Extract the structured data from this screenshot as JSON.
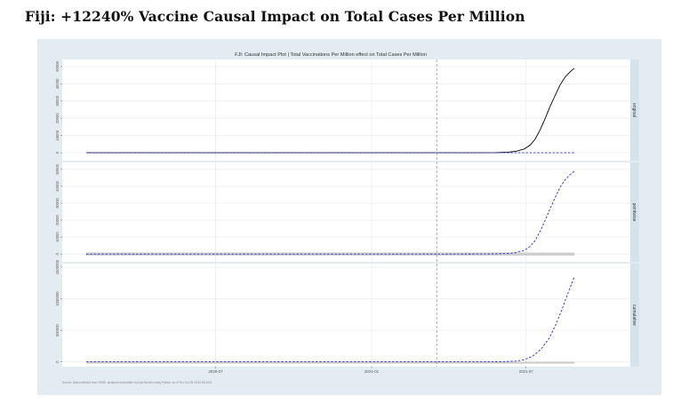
{
  "page_title": "Fiji: +12240% Vaccine Causal Impact on Total Cases Per Million",
  "colors": {
    "figure_background": "#e3ecf1",
    "panel_background": "#ffffff",
    "strip_background": "#d7e3eb",
    "observed_line": "#000000",
    "predicted_line": "#2f2fbf",
    "intervention_line": "#9a9a9a",
    "gridline": "#e4e8ec",
    "band": "#bdbdbd"
  },
  "chart_data": {
    "type": "line",
    "title": "FJI: Causal Impact Plot | Total Vaccinations Per Million effect on Total Cases Per Million",
    "source_note": "Source: Data collected from OWID, analyzed and plotted by Kyle Burden using Python, as of Thu Oct 05 19:42:08 2021",
    "x_domain": [
      0,
      620
    ],
    "intervention_x": 420,
    "x_ticks": [
      {
        "x": 155,
        "label": "2020-07"
      },
      {
        "x": 342,
        "label": "2021-01"
      },
      {
        "x": 527,
        "label": "2021-07"
      }
    ],
    "panels": [
      {
        "name": "original",
        "ylim": [
          -2000,
          52000
        ],
        "y_ticks": [
          0,
          10000,
          20000,
          30000,
          40000,
          50000
        ],
        "series": [
          {
            "name": "observed",
            "style": "solid",
            "points": [
              [
                0,
                0
              ],
              [
                420,
                0
              ],
              [
                470,
                30
              ],
              [
                490,
                100
              ],
              [
                505,
                350
              ],
              [
                515,
                900
              ],
              [
                525,
                2200
              ],
              [
                532,
                4500
              ],
              [
                538,
                8000
              ],
              [
                544,
                13500
              ],
              [
                550,
                20000
              ],
              [
                556,
                27000
              ],
              [
                562,
                33500
              ],
              [
                568,
                39500
              ],
              [
                574,
                44000
              ],
              [
                580,
                47000
              ],
              [
                585,
                49000
              ]
            ]
          },
          {
            "name": "predicted",
            "style": "dashed",
            "points": [
              [
                0,
                0
              ],
              [
                585,
                0
              ]
            ]
          }
        ]
      },
      {
        "name": "pointwise",
        "ylim": [
          -2000,
          52000
        ],
        "y_ticks": [
          0,
          10000,
          20000,
          30000,
          40000,
          50000
        ],
        "band": {
          "lower": -900,
          "upper": 900,
          "x_end": 585
        },
        "series": [
          {
            "name": "pointwise effect",
            "style": "dashed",
            "points": [
              [
                0,
                0
              ],
              [
                420,
                0
              ],
              [
                470,
                30
              ],
              [
                490,
                100
              ],
              [
                505,
                350
              ],
              [
                515,
                900
              ],
              [
                525,
                2200
              ],
              [
                532,
                4500
              ],
              [
                538,
                8000
              ],
              [
                544,
                13500
              ],
              [
                550,
                20000
              ],
              [
                556,
                27000
              ],
              [
                562,
                33500
              ],
              [
                568,
                39500
              ],
              [
                574,
                44000
              ],
              [
                580,
                47000
              ],
              [
                585,
                49000
              ]
            ]
          }
        ]
      },
      {
        "name": "cumulative",
        "ylim": [
          -5000,
          1500000
        ],
        "y_ticks": [
          0,
          500000,
          1000000,
          1500000
        ],
        "band": {
          "lower": -2500,
          "upper": 2500,
          "x_end": 585
        },
        "series": [
          {
            "name": "cumulative effect",
            "style": "dashed",
            "points": [
              [
                0,
                0
              ],
              [
                420,
                0
              ],
              [
                480,
                500
              ],
              [
                500,
                3000
              ],
              [
                515,
                12000
              ],
              [
                525,
                35000
              ],
              [
                535,
                90000
              ],
              [
                545,
                200000
              ],
              [
                555,
                380000
              ],
              [
                563,
                600000
              ],
              [
                570,
                830000
              ],
              [
                577,
                1080000
              ],
              [
                585,
                1350000
              ]
            ]
          }
        ]
      }
    ]
  }
}
